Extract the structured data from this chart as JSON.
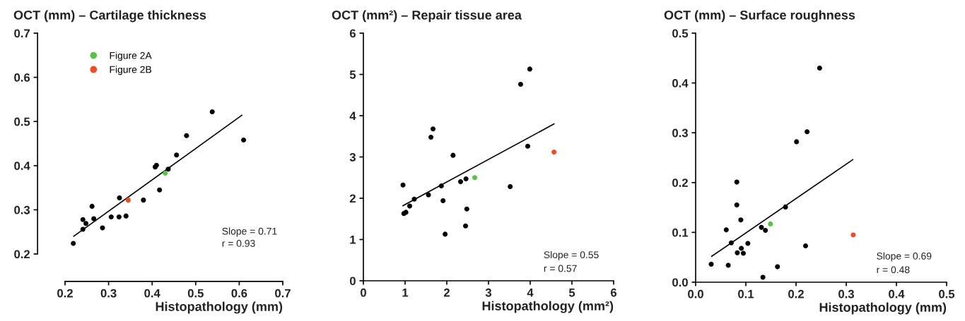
{
  "chart_data": [
    {
      "type": "scatter",
      "title": "OCT (mm) – Cartilage thickness",
      "xlabel": "Histopathology (mm)",
      "xlim": [
        0.2,
        0.7
      ],
      "ylim": [
        0.2,
        0.7
      ],
      "xticks": [
        0.2,
        0.3,
        0.4,
        0.5,
        0.6,
        0.7
      ],
      "yticks": [
        0.2,
        0.3,
        0.4,
        0.5,
        0.6,
        0.7
      ],
      "grid": false,
      "legend": "top left",
      "annotations": [
        "Slope = 0.71",
        "r = 0.93"
      ],
      "series": [
        {
          "color": "#000000",
          "x": [
            0.219,
            0.241,
            0.241,
            0.248,
            0.262,
            0.266,
            0.286,
            0.306,
            0.324,
            0.325,
            0.34,
            0.38,
            0.407,
            0.41,
            0.417,
            0.437,
            0.456,
            0.479,
            0.538,
            0.61
          ],
          "values": [
            0.224,
            0.278,
            0.256,
            0.269,
            0.308,
            0.28,
            0.259,
            0.284,
            0.284,
            0.327,
            0.286,
            0.322,
            0.397,
            0.401,
            0.345,
            0.392,
            0.424,
            0.468,
            0.522,
            0.458
          ]
        },
        {
          "name": "Figure 2A",
          "color": "#5cbf4a",
          "x": [
            0.43
          ],
          "values": [
            0.383
          ]
        },
        {
          "name": "Figure 2B",
          "color": "#ee4b2b",
          "x": [
            0.345
          ],
          "values": [
            0.322
          ]
        },
        {
          "type": "line",
          "color": "#000000",
          "x": [
            0.22,
            0.606
          ],
          "values": [
            0.24,
            0.514
          ]
        }
      ]
    },
    {
      "type": "scatter",
      "title": "OCT (mm²) – Repair tissue area",
      "xlabel": "Histopathology (mm²)",
      "xlim": [
        0,
        6
      ],
      "ylim": [
        0,
        6
      ],
      "xticks": [
        0,
        1,
        2,
        3,
        4,
        5,
        6
      ],
      "yticks": [
        0,
        1,
        2,
        3,
        4,
        5,
        6
      ],
      "grid": false,
      "annotations": [
        "Slope = 0.55",
        "r = 0.57"
      ],
      "series": [
        {
          "color": "#000000",
          "x": [
            0.95,
            0.97,
            1.02,
            1.11,
            1.22,
            1.56,
            1.62,
            1.67,
            1.87,
            1.91,
            1.96,
            2.15,
            2.33,
            2.46,
            2.48,
            2.45,
            3.52,
            3.77,
            3.94,
            3.99
          ],
          "values": [
            2.32,
            1.63,
            1.66,
            1.81,
            1.98,
            2.08,
            3.48,
            3.68,
            2.3,
            1.94,
            1.13,
            3.04,
            2.4,
            2.47,
            1.74,
            1.33,
            2.28,
            4.76,
            3.26,
            5.13
          ]
        },
        {
          "color": "#5cbf4a",
          "x": [
            2.67
          ],
          "values": [
            2.5
          ]
        },
        {
          "color": "#ee4b2b",
          "x": [
            4.57
          ],
          "values": [
            3.12
          ]
        },
        {
          "type": "line",
          "color": "#000000",
          "x": [
            0.95,
            4.57
          ],
          "values": [
            1.82,
            3.8
          ]
        }
      ]
    },
    {
      "type": "scatter",
      "title": "OCT (mm) – Surface roughness",
      "xlabel": "Histopathology (mm)",
      "xlim": [
        0,
        0.5
      ],
      "ylim": [
        0,
        0.5
      ],
      "xticks": [
        {
          "value": 0,
          "label": "0.0"
        },
        0.1,
        0.2,
        0.3,
        0.4,
        0.5
      ],
      "yticks": [
        {
          "value": 0,
          "label": "0.0"
        },
        0.1,
        0.2,
        0.3,
        0.4,
        0.5
      ],
      "grid": false,
      "annotations": [
        "Slope = 0.69",
        "r = 0.48"
      ],
      "series": [
        {
          "color": "#000000",
          "x": [
            0.031,
            0.061,
            0.065,
            0.071,
            0.082,
            0.082,
            0.083,
            0.09,
            0.091,
            0.095,
            0.104,
            0.131,
            0.134,
            0.139,
            0.163,
            0.179,
            0.201,
            0.219,
            0.222,
            0.247
          ],
          "values": [
            0.036,
            0.105,
            0.034,
            0.079,
            0.201,
            0.155,
            0.059,
            0.125,
            0.068,
            0.058,
            0.078,
            0.11,
            0.01,
            0.104,
            0.031,
            0.151,
            0.282,
            0.073,
            0.302,
            0.43
          ]
        },
        {
          "color": "#5cbf4a",
          "x": [
            0.149
          ],
          "values": [
            0.117
          ]
        },
        {
          "color": "#ee4b2b",
          "x": [
            0.314
          ],
          "values": [
            0.095
          ]
        },
        {
          "type": "line",
          "color": "#000000",
          "x": [
            0.032,
            0.313
          ],
          "values": [
            0.052,
            0.246
          ]
        }
      ]
    }
  ]
}
